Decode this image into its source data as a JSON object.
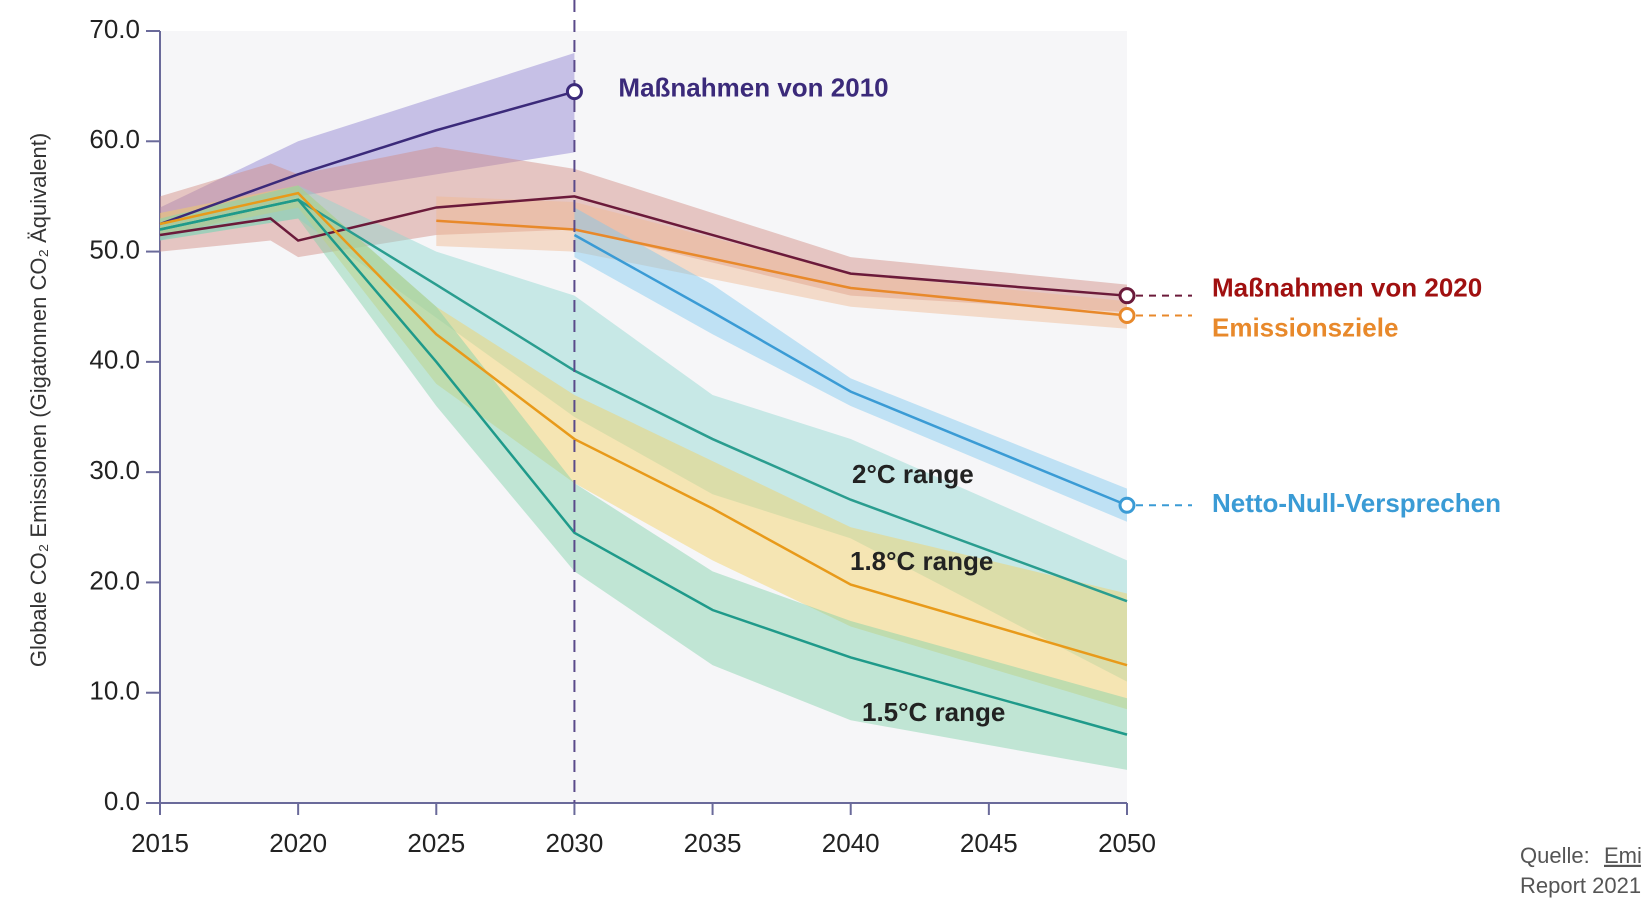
{
  "chart_data": {
    "type": "line",
    "y_label": "Globale CO₂ Emissionen (Gigatonnen CO₂ Äquivalent)",
    "xlim": [
      2015,
      2050
    ],
    "xticks": [
      2015,
      2020,
      2025,
      2030,
      2035,
      2040,
      2045,
      2050
    ],
    "ylim": [
      0,
      70
    ],
    "yticks": [
      {
        "value": 0,
        "label": "0.0"
      },
      {
        "value": 10,
        "label": "10.0"
      },
      {
        "value": 20,
        "label": "20.0"
      },
      {
        "value": 30,
        "label": "30.0"
      },
      {
        "value": 40,
        "label": "40.0"
      },
      {
        "value": 50,
        "label": "50.0"
      },
      {
        "value": 60,
        "label": "60.0"
      },
      {
        "value": 70,
        "label": "70.0"
      }
    ],
    "reference_x": 2030,
    "series": [
      {
        "name": "Maßnahmen von 2010",
        "color": "#3b2a7a",
        "band_color": "#8b7fd0",
        "marker": true,
        "x": [
          2015,
          2020,
          2025,
          2030
        ],
        "values": [
          52.5,
          57,
          61,
          64.5
        ],
        "lower": [
          51,
          55,
          57,
          59
        ],
        "upper": [
          54,
          60,
          64,
          68
        ]
      },
      {
        "name": "Maßnahmen von 2020",
        "color": "#6b1a3a",
        "label_color": "#a01010",
        "band_color": "#d08a80",
        "marker": true,
        "x": [
          2015,
          2019,
          2020,
          2025,
          2030,
          2040,
          2050
        ],
        "values": [
          51.5,
          53,
          51,
          54,
          55,
          48,
          46
        ],
        "lower": [
          50,
          51,
          49.5,
          51.5,
          52,
          46,
          44.5
        ],
        "upper": [
          55,
          58,
          57,
          59.5,
          57.5,
          49.5,
          47
        ]
      },
      {
        "name": "Emissionsziele",
        "color": "#e8892b",
        "band_color": "#f0b890",
        "marker": true,
        "x": [
          2025,
          2030,
          2040,
          2050
        ],
        "values": [
          52.8,
          52,
          46.7,
          44.2
        ],
        "lower": [
          50.5,
          50,
          45,
          43
        ],
        "upper": [
          55,
          54.5,
          48,
          45.5
        ]
      },
      {
        "name": "Netto-Null-Versprechen",
        "color": "#3a9bd5",
        "band_color": "#7cc8f0",
        "marker": true,
        "x": [
          2030,
          2035,
          2040,
          2050
        ],
        "values": [
          51.5,
          44.5,
          37.3,
          27
        ],
        "lower": [
          49.5,
          42.5,
          36,
          25.5
        ],
        "upper": [
          54,
          47,
          38.5,
          28.5
        ]
      },
      {
        "name": "2°C range",
        "color": "#2a9d8f",
        "band_color": "#8fd6d0",
        "marker": false,
        "x": [
          2015,
          2020,
          2025,
          2030,
          2035,
          2040,
          2050
        ],
        "values": [
          52,
          54.7,
          47,
          39.2,
          33,
          27.5,
          18.3
        ],
        "lower": [
          51,
          53,
          44,
          35,
          28,
          24,
          11
        ],
        "upper": [
          53,
          56,
          50,
          46,
          37,
          33,
          22
        ]
      },
      {
        "name": "1.8°C range",
        "color": "#e89a1a",
        "band_color": "#f5d060",
        "marker": false,
        "x": [
          2015,
          2020,
          2025,
          2030,
          2035,
          2040,
          2050
        ],
        "values": [
          52.5,
          55.3,
          42.5,
          33,
          26.7,
          19.8,
          12.5
        ],
        "lower": [
          51.5,
          54,
          38,
          29,
          22,
          16,
          8.5
        ],
        "upper": [
          53.5,
          56,
          45,
          37,
          31,
          25,
          19
        ]
      },
      {
        "name": "1.5°C range",
        "color": "#1f9a8a",
        "band_color": "#7ed0a8",
        "marker": false,
        "x": [
          2015,
          2020,
          2025,
          2030,
          2035,
          2040,
          2050
        ],
        "values": [
          52,
          54.7,
          40,
          24.5,
          17.5,
          13.2,
          6.2
        ],
        "lower": [
          51,
          53,
          36,
          21,
          12.5,
          7.5,
          3
        ],
        "upper": [
          53,
          56,
          45,
          29,
          21,
          16.5,
          9.5
        ]
      }
    ],
    "source": [
      "Quelle:",
      "Emissio",
      "Report 2021"
    ]
  }
}
